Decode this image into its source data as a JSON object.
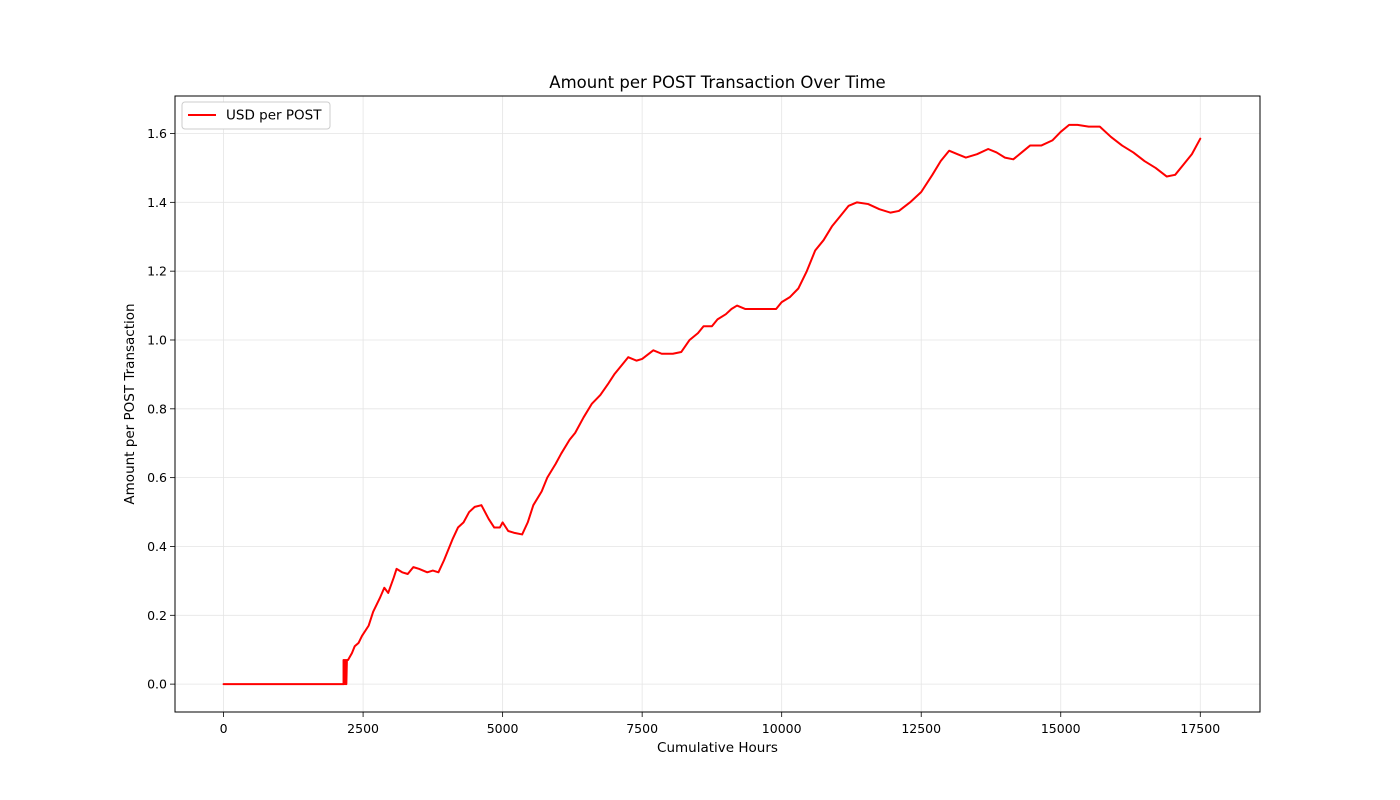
{
  "chart_data": {
    "type": "line",
    "title": "Amount per POST Transaction Over Time",
    "xlabel": "Cumulative Hours",
    "ylabel": "Amount per POST Transaction",
    "xlim": [
      -870,
      18570
    ],
    "ylim": [
      -0.081,
      1.709
    ],
    "x_ticks": [
      0,
      2500,
      5000,
      7500,
      10000,
      12500,
      15000,
      17500
    ],
    "x_tick_labels": [
      "0",
      "2500",
      "5000",
      "7500",
      "10000",
      "12500",
      "15000",
      "17500"
    ],
    "y_ticks": [
      0.0,
      0.2,
      0.4,
      0.6,
      0.8,
      1.0,
      1.2,
      1.4,
      1.6
    ],
    "y_tick_labels": [
      "0.0",
      "0.2",
      "0.4",
      "0.6",
      "0.8",
      "1.0",
      "1.2",
      "1.4",
      "1.6"
    ],
    "grid": true,
    "legend": "upper-left",
    "series": [
      {
        "name": "USD per POST",
        "color": "#ff0000",
        "points": [
          [
            0,
            0.0
          ],
          [
            2150,
            0.0
          ],
          [
            2150,
            0.07
          ],
          [
            2160,
            0.0
          ],
          [
            2170,
            0.07
          ],
          [
            2180,
            0.0
          ],
          [
            2190,
            0.07
          ],
          [
            2200,
            0.0
          ],
          [
            2210,
            0.07
          ],
          [
            2230,
            0.07
          ],
          [
            2300,
            0.09
          ],
          [
            2350,
            0.11
          ],
          [
            2420,
            0.12
          ],
          [
            2480,
            0.14
          ],
          [
            2600,
            0.17
          ],
          [
            2680,
            0.21
          ],
          [
            2800,
            0.25
          ],
          [
            2880,
            0.28
          ],
          [
            2950,
            0.265
          ],
          [
            3050,
            0.31
          ],
          [
            3100,
            0.335
          ],
          [
            3200,
            0.325
          ],
          [
            3300,
            0.32
          ],
          [
            3400,
            0.34
          ],
          [
            3500,
            0.335
          ],
          [
            3650,
            0.325
          ],
          [
            3750,
            0.33
          ],
          [
            3850,
            0.325
          ],
          [
            3950,
            0.36
          ],
          [
            4100,
            0.42
          ],
          [
            4200,
            0.455
          ],
          [
            4300,
            0.47
          ],
          [
            4400,
            0.5
          ],
          [
            4500,
            0.515
          ],
          [
            4620,
            0.52
          ],
          [
            4750,
            0.48
          ],
          [
            4850,
            0.455
          ],
          [
            4950,
            0.455
          ],
          [
            5000,
            0.47
          ],
          [
            5100,
            0.445
          ],
          [
            5200,
            0.44
          ],
          [
            5350,
            0.435
          ],
          [
            5450,
            0.47
          ],
          [
            5550,
            0.52
          ],
          [
            5700,
            0.56
          ],
          [
            5800,
            0.6
          ],
          [
            5950,
            0.64
          ],
          [
            6050,
            0.67
          ],
          [
            6200,
            0.71
          ],
          [
            6300,
            0.73
          ],
          [
            6450,
            0.775
          ],
          [
            6600,
            0.815
          ],
          [
            6750,
            0.84
          ],
          [
            6900,
            0.875
          ],
          [
            7000,
            0.9
          ],
          [
            7150,
            0.93
          ],
          [
            7250,
            0.95
          ],
          [
            7400,
            0.94
          ],
          [
            7500,
            0.945
          ],
          [
            7700,
            0.97
          ],
          [
            7850,
            0.96
          ],
          [
            8050,
            0.96
          ],
          [
            8200,
            0.965
          ],
          [
            8350,
            1.0
          ],
          [
            8500,
            1.02
          ],
          [
            8600,
            1.04
          ],
          [
            8750,
            1.04
          ],
          [
            8850,
            1.06
          ],
          [
            9000,
            1.075
          ],
          [
            9100,
            1.09
          ],
          [
            9200,
            1.1
          ],
          [
            9350,
            1.09
          ],
          [
            9550,
            1.09
          ],
          [
            9750,
            1.09
          ],
          [
            9900,
            1.09
          ],
          [
            10000,
            1.11
          ],
          [
            10150,
            1.125
          ],
          [
            10300,
            1.15
          ],
          [
            10450,
            1.2
          ],
          [
            10600,
            1.26
          ],
          [
            10750,
            1.29
          ],
          [
            10900,
            1.33
          ],
          [
            11050,
            1.36
          ],
          [
            11200,
            1.39
          ],
          [
            11350,
            1.4
          ],
          [
            11550,
            1.395
          ],
          [
            11750,
            1.38
          ],
          [
            11950,
            1.37
          ],
          [
            12100,
            1.375
          ],
          [
            12300,
            1.4
          ],
          [
            12500,
            1.43
          ],
          [
            12700,
            1.48
          ],
          [
            12850,
            1.52
          ],
          [
            13000,
            1.55
          ],
          [
            13150,
            1.54
          ],
          [
            13300,
            1.53
          ],
          [
            13500,
            1.54
          ],
          [
            13700,
            1.555
          ],
          [
            13850,
            1.545
          ],
          [
            14000,
            1.53
          ],
          [
            14150,
            1.525
          ],
          [
            14300,
            1.545
          ],
          [
            14450,
            1.565
          ],
          [
            14650,
            1.565
          ],
          [
            14850,
            1.58
          ],
          [
            15000,
            1.605
          ],
          [
            15150,
            1.625
          ],
          [
            15300,
            1.625
          ],
          [
            15500,
            1.62
          ],
          [
            15700,
            1.62
          ],
          [
            15900,
            1.59
          ],
          [
            16100,
            1.565
          ],
          [
            16300,
            1.545
          ],
          [
            16500,
            1.52
          ],
          [
            16700,
            1.5
          ],
          [
            16900,
            1.475
          ],
          [
            17050,
            1.48
          ],
          [
            17200,
            1.51
          ],
          [
            17350,
            1.54
          ],
          [
            17500,
            1.585
          ]
        ]
      }
    ]
  }
}
